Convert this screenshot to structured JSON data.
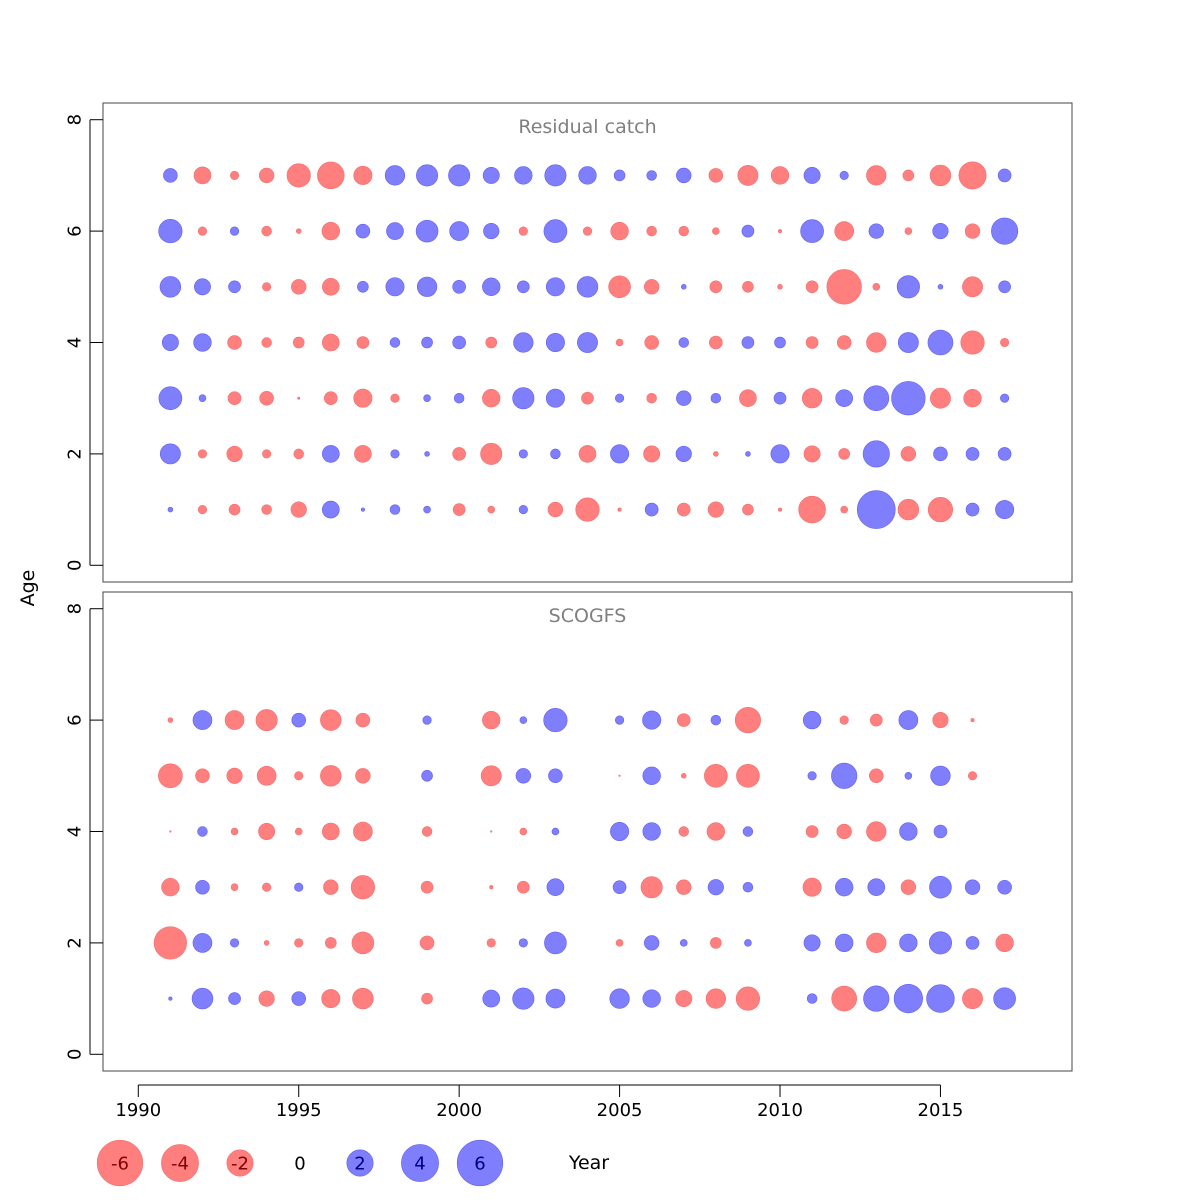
{
  "chart_data": {
    "type": "scatter",
    "subtype": "bubble",
    "xlabel": "Year",
    "ylabel": "Age",
    "xlim": [
      1988.9,
      2019.1
    ],
    "ylim": [
      -0.3,
      8.3
    ],
    "x_ticks": [
      1990,
      1995,
      2000,
      2005,
      2010,
      2015
    ],
    "y_ticks": [
      0,
      2,
      4,
      6,
      8
    ],
    "colors": {
      "positive": "#7f7ffe",
      "negative": "#ff7f7f",
      "positive_text": "#00007f",
      "negative_text": "#7f0000"
    },
    "legend": {
      "position": "bottom",
      "values": [
        -6,
        -4,
        -2,
        0,
        2,
        4,
        6
      ],
      "labels": [
        "-6",
        "-4",
        "-2",
        "0",
        "2",
        "4",
        "6"
      ]
    },
    "panels": [
      {
        "title": "Residual catch",
        "years": [
          1991,
          1992,
          1993,
          1994,
          1995,
          1996,
          1997,
          1998,
          1999,
          2000,
          2001,
          2002,
          2003,
          2004,
          2005,
          2006,
          2007,
          2008,
          2009,
          2010,
          2011,
          2012,
          2013,
          2014,
          2015,
          2016,
          2017
        ],
        "ages": [
          1,
          2,
          3,
          4,
          5,
          6,
          7
        ],
        "residuals": {
          "7": [
            0.8,
            -1.2,
            -0.3,
            -0.9,
            -2.3,
            -3.0,
            -1.4,
            1.6,
            1.9,
            1.9,
            1.1,
            1.3,
            1.9,
            1.3,
            0.5,
            0.4,
            0.9,
            -0.8,
            -1.7,
            -1.3,
            1.1,
            0.3,
            -1.6,
            -0.5,
            -1.8,
            -3.1,
            0.7
          ],
          "6": [
            2.3,
            -0.3,
            0.3,
            -0.4,
            -0.1,
            -1.3,
            0.8,
            1.2,
            2.0,
            1.5,
            1.0,
            -0.3,
            2.2,
            -0.3,
            -1.3,
            -0.4,
            -0.4,
            -0.2,
            0.6,
            -0.05,
            2.2,
            -1.5,
            0.9,
            -0.2,
            1.0,
            -0.9,
            2.9
          ],
          "5": [
            1.8,
            1.1,
            0.6,
            -0.3,
            -0.9,
            -1.2,
            0.5,
            1.4,
            1.6,
            0.7,
            1.3,
            0.6,
            1.4,
            1.8,
            -2.0,
            -0.9,
            0.1,
            -0.6,
            -0.5,
            -0.1,
            -0.6,
            -5.0,
            -0.2,
            2.1,
            0.1,
            -1.7,
            0.6
          ],
          "4": [
            1.1,
            1.3,
            -0.8,
            -0.4,
            -0.5,
            -1.2,
            -0.6,
            0.4,
            0.5,
            0.7,
            -0.5,
            1.6,
            1.4,
            1.7,
            -0.2,
            -0.8,
            0.4,
            -0.7,
            0.6,
            0.5,
            -0.6,
            -0.8,
            -1.6,
            1.7,
            2.6,
            -2.3,
            -0.3
          ],
          "3": [
            2.2,
            0.2,
            -0.7,
            -0.8,
            -0.02,
            -0.7,
            -1.4,
            -0.3,
            0.2,
            0.4,
            -1.3,
            1.9,
            1.4,
            -0.6,
            0.3,
            -0.4,
            0.9,
            0.4,
            -1.2,
            0.6,
            -1.6,
            1.2,
            2.6,
            4.7,
            -1.7,
            -1.3,
            0.3
          ],
          "2": [
            1.7,
            -0.3,
            -1.0,
            -0.3,
            -0.4,
            1.2,
            -1.2,
            0.3,
            0.1,
            -0.7,
            -1.9,
            0.3,
            0.4,
            -1.2,
            1.4,
            -1.1,
            1.0,
            -0.1,
            0.1,
            1.4,
            -1.1,
            -0.5,
            2.9,
            -0.9,
            0.8,
            0.7,
            0.7
          ],
          "1": [
            0.1,
            -0.3,
            -0.5,
            -0.4,
            -1.0,
            1.2,
            0.05,
            0.4,
            0.2,
            -0.6,
            -0.2,
            0.3,
            -0.9,
            -2.3,
            -0.05,
            0.7,
            -0.7,
            -1.0,
            -0.5,
            -0.05,
            -3.0,
            -0.2,
            6.0,
            -1.8,
            -2.5,
            0.7,
            1.4
          ]
        }
      },
      {
        "title": "SCOGFS",
        "years": [
          1991,
          1992,
          1993,
          1994,
          1995,
          1996,
          1997,
          1999,
          2001,
          2002,
          2003,
          2005,
          2006,
          2007,
          2008,
          2009,
          2011,
          2012,
          2013,
          2014,
          2015,
          2016,
          2017
        ],
        "ages": [
          1,
          2,
          3,
          4,
          5,
          6
        ],
        "residuals": {
          "6": [
            -0.1,
            1.5,
            -1.5,
            -1.9,
            0.8,
            -1.8,
            -0.8,
            0.3,
            -1.3,
            0.2,
            2.3,
            0.3,
            1.4,
            -0.7,
            0.4,
            -2.7,
            1.3,
            -0.3,
            -0.6,
            1.5,
            -1.0,
            -0.05
          ],
          "5": [
            -2.4,
            -0.8,
            -1.0,
            -1.5,
            -0.3,
            -1.8,
            -0.9,
            0.5,
            -1.7,
            0.9,
            0.8,
            -0.01,
            1.3,
            -0.1,
            -2.2,
            -2.2,
            0.3,
            2.7,
            -0.8,
            0.2,
            1.6,
            -0.3
          ],
          "4": [
            -0.01,
            0.4,
            -0.2,
            -1.1,
            -0.2,
            -1.2,
            -1.5,
            -0.4,
            -0.01,
            -0.2,
            0.2,
            1.4,
            1.3,
            -0.4,
            -1.3,
            0.4,
            -0.6,
            -0.9,
            -1.6,
            1.3,
            0.7
          ],
          "3": [
            -1.3,
            0.8,
            -0.2,
            -0.3,
            0.3,
            -0.9,
            -2.3,
            -0.6,
            -0.05,
            -0.6,
            1.2,
            0.7,
            -1.9,
            -0.9,
            1.0,
            0.4,
            -1.4,
            1.3,
            1.2,
            -0.9,
            2.0,
            0.9,
            0.8
          ],
          "2": [
            -4.4,
            1.5,
            0.3,
            -0.1,
            -0.3,
            -0.5,
            -2.0,
            -0.8,
            -0.3,
            0.3,
            2.0,
            -0.2,
            0.9,
            0.2,
            -0.5,
            0.2,
            1.1,
            1.3,
            -1.6,
            1.3,
            2.1,
            0.7,
            -1.3
          ],
          "1": [
            0.05,
            1.8,
            0.6,
            -1.0,
            0.8,
            -1.4,
            -1.8,
            -0.5,
            1.2,
            1.9,
            1.5,
            1.6,
            1.3,
            -1.1,
            -1.6,
            -2.3,
            0.4,
            -2.6,
            2.7,
            3.4,
            3.2,
            -1.7,
            2.0
          ]
        }
      }
    ]
  }
}
